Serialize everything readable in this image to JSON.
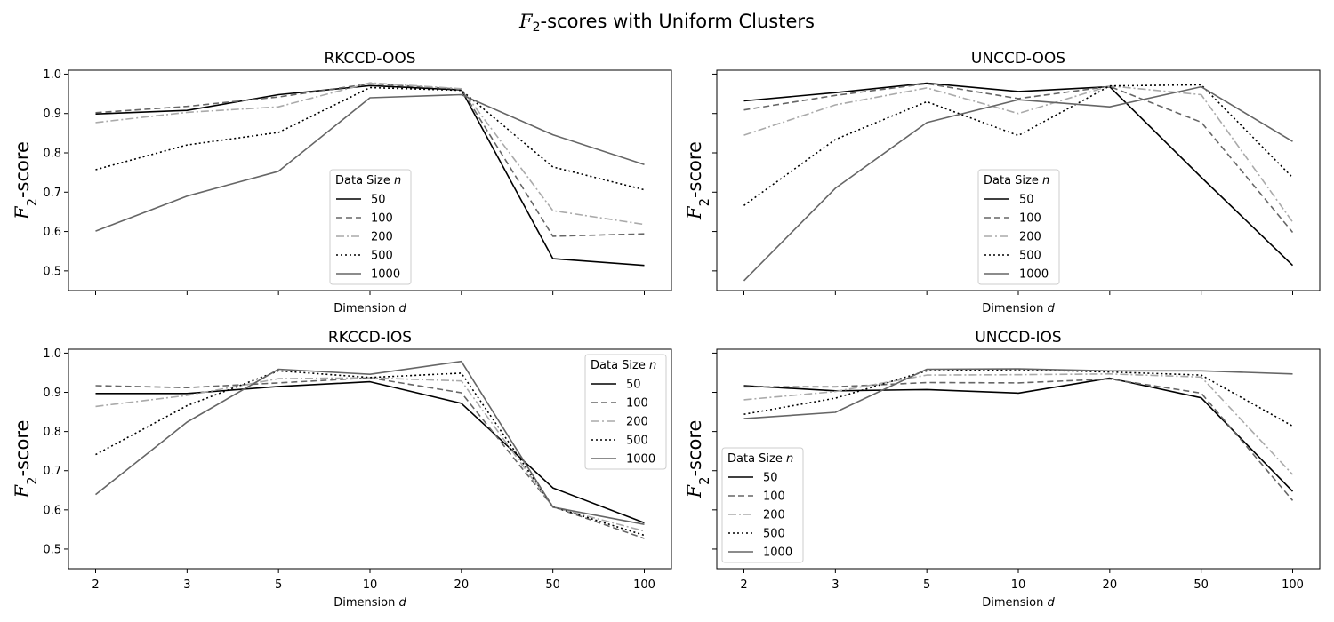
{
  "figure": {
    "title_var": "F",
    "title_sub": "2",
    "title_rest": "-scores with Uniform Clusters"
  },
  "styles": {
    "50": {
      "color": "#000000",
      "dash": ""
    },
    "100": {
      "color": "#666666",
      "dash": "7,4"
    },
    "200": {
      "color": "#aaaaaa",
      "dash": "9,3,2,3"
    },
    "500": {
      "color": "#000000",
      "dash": "2,3"
    },
    "1000": {
      "color": "#666666",
      "dash": ""
    }
  },
  "chart_data": [
    {
      "type": "line",
      "title": "RKCCD-OOS",
      "xlabel": "Dimension d",
      "ylabel": "F2-score",
      "x": [
        2,
        3,
        5,
        10,
        20,
        50,
        100
      ],
      "x_scale": "categorical",
      "ylim": [
        0.45,
        1.01
      ],
      "yticks": [
        0.5,
        0.6,
        0.7,
        0.8,
        0.9,
        1.0
      ],
      "show_x_ticklabels": false,
      "show_y_ticklabels": true,
      "legend": {
        "title": "Data Size n",
        "placement": "lower-center"
      },
      "series": [
        {
          "name": "50",
          "values": [
            0.899,
            0.908,
            0.948,
            0.971,
            0.96,
            0.531,
            0.514
          ]
        },
        {
          "name": "100",
          "values": [
            0.902,
            0.918,
            0.942,
            0.976,
            0.962,
            0.588,
            0.594
          ]
        },
        {
          "name": "200",
          "values": [
            0.877,
            0.903,
            0.917,
            0.978,
            0.963,
            0.653,
            0.618
          ]
        },
        {
          "name": "500",
          "values": [
            0.757,
            0.82,
            0.852,
            0.966,
            0.959,
            0.764,
            0.706
          ]
        },
        {
          "name": "1000",
          "values": [
            0.601,
            0.69,
            0.753,
            0.94,
            0.948,
            0.846,
            0.77
          ]
        }
      ]
    },
    {
      "type": "line",
      "title": "UNCCD-OOS",
      "xlabel": "Dimension d",
      "ylabel": "F2-score",
      "x": [
        2,
        3,
        5,
        10,
        20,
        50,
        100
      ],
      "x_scale": "categorical",
      "ylim": [
        0.45,
        1.01
      ],
      "yticks": [
        0.5,
        0.6,
        0.7,
        0.8,
        0.9,
        1.0
      ],
      "show_x_ticklabels": false,
      "show_y_ticklabels": false,
      "legend": {
        "title": "Data Size n",
        "placement": "lower-center"
      },
      "series": [
        {
          "name": "50",
          "values": [
            0.932,
            0.953,
            0.977,
            0.956,
            0.968,
            0.738,
            0.514
          ]
        },
        {
          "name": "100",
          "values": [
            0.909,
            0.946,
            0.976,
            0.938,
            0.969,
            0.878,
            0.598
          ]
        },
        {
          "name": "200",
          "values": [
            0.845,
            0.922,
            0.965,
            0.9,
            0.97,
            0.948,
            0.624
          ]
        },
        {
          "name": "500",
          "values": [
            0.666,
            0.834,
            0.93,
            0.844,
            0.97,
            0.973,
            0.737
          ]
        },
        {
          "name": "1000",
          "values": [
            0.475,
            0.71,
            0.877,
            0.935,
            0.917,
            0.968,
            0.829
          ]
        }
      ]
    },
    {
      "type": "line",
      "title": "RKCCD-IOS",
      "xlabel": "Dimension d",
      "ylabel": "F2-score",
      "x": [
        2,
        3,
        5,
        10,
        20,
        50,
        100
      ],
      "x_scale": "categorical",
      "ylim": [
        0.45,
        1.01
      ],
      "yticks": [
        0.5,
        0.6,
        0.7,
        0.8,
        0.9,
        1.0
      ],
      "show_x_ticklabels": true,
      "show_y_ticklabels": true,
      "legend": {
        "title": "Data Size n",
        "placement": "upper-right"
      },
      "series": [
        {
          "name": "50",
          "values": [
            0.897,
            0.897,
            0.915,
            0.927,
            0.872,
            0.656,
            0.567
          ]
        },
        {
          "name": "100",
          "values": [
            0.917,
            0.912,
            0.924,
            0.937,
            0.899,
            0.608,
            0.527
          ]
        },
        {
          "name": "200",
          "values": [
            0.864,
            0.892,
            0.935,
            0.937,
            0.929,
            0.607,
            0.546
          ]
        },
        {
          "name": "500",
          "values": [
            0.741,
            0.866,
            0.955,
            0.938,
            0.949,
            0.608,
            0.535
          ]
        },
        {
          "name": "1000",
          "values": [
            0.639,
            0.824,
            0.959,
            0.946,
            0.979,
            0.607,
            0.563
          ]
        }
      ]
    },
    {
      "type": "line",
      "title": "UNCCD-IOS",
      "xlabel": "Dimension d",
      "ylabel": "F2-score",
      "x": [
        2,
        3,
        5,
        10,
        20,
        50,
        100
      ],
      "x_scale": "categorical",
      "ylim": [
        0.45,
        1.01
      ],
      "yticks": [
        0.5,
        0.6,
        0.7,
        0.8,
        0.9,
        1.0
      ],
      "show_x_ticklabels": true,
      "show_y_ticklabels": false,
      "legend": {
        "title": "Data Size n",
        "placement": "lower-left"
      },
      "series": [
        {
          "name": "50",
          "values": [
            0.917,
            0.904,
            0.907,
            0.898,
            0.936,
            0.886,
            0.647
          ]
        },
        {
          "name": "100",
          "values": [
            0.914,
            0.914,
            0.925,
            0.924,
            0.934,
            0.898,
            0.624
          ]
        },
        {
          "name": "200",
          "values": [
            0.881,
            0.902,
            0.944,
            0.945,
            0.947,
            0.939,
            0.69
          ]
        },
        {
          "name": "500",
          "values": [
            0.844,
            0.885,
            0.955,
            0.958,
            0.952,
            0.944,
            0.814
          ]
        },
        {
          "name": "1000",
          "values": [
            0.833,
            0.849,
            0.959,
            0.96,
            0.955,
            0.955,
            0.947
          ]
        }
      ]
    }
  ]
}
